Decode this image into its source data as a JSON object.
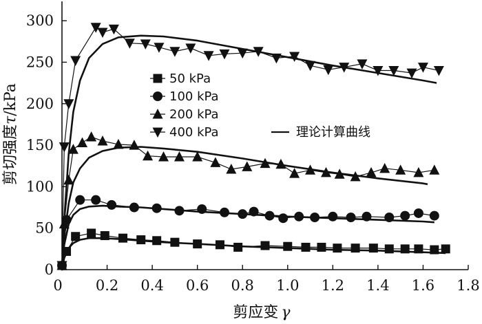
{
  "chart_data": {
    "type": "line",
    "title": "",
    "xlabel_text": "剪应变",
    "xlabel_symbol": "γ",
    "ylabel_prefix": "剪切强度",
    "ylabel_symbol": "τ",
    "ylabel_unit": "/kPa",
    "xlim": [
      0,
      1.8
    ],
    "ylim": [
      0,
      320
    ],
    "x_ticks": [
      0,
      0.2,
      0.4,
      0.6,
      0.8,
      1.0,
      1.2,
      1.4,
      1.6,
      1.8
    ],
    "x_tick_labels": [
      "0",
      "0.2",
      "0.4",
      "0.6",
      "0.8",
      "1.0",
      "1.2",
      "1.4",
      "1.6",
      "1.8"
    ],
    "y_ticks": [
      0,
      50,
      100,
      150,
      200,
      250,
      300
    ],
    "y_tick_labels": [
      "0",
      "50",
      "100",
      "150",
      "200",
      "250",
      "300"
    ],
    "grid": false,
    "legend_position": "middle-left",
    "series": [
      {
        "name": "50 kPa",
        "marker": "square",
        "x": [
          0,
          0.02,
          0.06,
          0.13,
          0.19,
          0.27,
          0.35,
          0.42,
          0.5,
          0.6,
          0.7,
          0.78,
          0.9,
          1.0,
          1.08,
          1.15,
          1.22,
          1.3,
          1.38,
          1.45,
          1.52,
          1.58,
          1.65,
          1.7
        ],
        "y": [
          5,
          22,
          40,
          44,
          41,
          38,
          36,
          35,
          33,
          31,
          30,
          27,
          29,
          28,
          27,
          27,
          26,
          26,
          26,
          25,
          25,
          25,
          24,
          25
        ]
      },
      {
        "name": "100 kPa",
        "marker": "circle",
        "x": [
          0,
          0.02,
          0.08,
          0.15,
          0.22,
          0.32,
          0.42,
          0.52,
          0.62,
          0.72,
          0.8,
          0.85,
          0.92,
          0.98,
          1.05,
          1.12,
          1.2,
          1.28,
          1.35,
          1.45,
          1.52,
          1.58,
          1.65
        ],
        "y": [
          5,
          60,
          84,
          84,
          78,
          75,
          74,
          71,
          73,
          69,
          67,
          70,
          65,
          62,
          64,
          63,
          64,
          63,
          64,
          63,
          65,
          68,
          65
        ]
      },
      {
        "name": "200 kPa",
        "marker": "triangle-up",
        "x": [
          0,
          0.01,
          0.03,
          0.05,
          0.09,
          0.13,
          0.18,
          0.25,
          0.32,
          0.38,
          0.45,
          0.52,
          0.6,
          0.68,
          0.75,
          0.82,
          0.9,
          0.97,
          1.03,
          1.1,
          1.17,
          1.23,
          1.3,
          1.37,
          1.43,
          1.5,
          1.58,
          1.65
        ],
        "y": [
          5,
          55,
          108,
          145,
          153,
          160,
          155,
          151,
          150,
          137,
          136,
          136,
          136,
          129,
          121,
          124,
          128,
          127,
          116,
          120,
          117,
          115,
          112,
          117,
          122,
          120,
          117,
          120
        ]
      },
      {
        "name": "400 kPa",
        "marker": "triangle-down",
        "x": [
          0,
          0.01,
          0.03,
          0.06,
          0.15,
          0.18,
          0.23,
          0.3,
          0.37,
          0.43,
          0.5,
          0.57,
          0.65,
          0.72,
          0.8,
          0.87,
          0.95,
          1.03,
          1.1,
          1.18,
          1.25,
          1.33,
          1.4,
          1.47,
          1.55,
          1.6,
          1.67
        ],
        "y": [
          5,
          148,
          200,
          252,
          292,
          286,
          290,
          273,
          272,
          268,
          263,
          267,
          258,
          260,
          261,
          263,
          255,
          257,
          246,
          241,
          244,
          248,
          240,
          240,
          237,
          244,
          240
        ]
      }
    ],
    "theory_curves": {
      "name": "理论计算曲线",
      "series": [
        {
          "for": "50 kPa",
          "x": [
            0,
            0.01,
            0.03,
            0.05,
            0.08,
            0.12,
            0.18,
            0.25,
            0.35,
            0.45,
            0.6,
            0.8,
            1.0,
            1.2,
            1.4,
            1.6,
            1.7
          ],
          "y": [
            0,
            14,
            26,
            32,
            36,
            38,
            38,
            37,
            35,
            33,
            31,
            28,
            26,
            24,
            23,
            21,
            20
          ]
        },
        {
          "for": "100 kPa",
          "x": [
            0,
            0.01,
            0.03,
            0.05,
            0.08,
            0.12,
            0.18,
            0.25,
            0.35,
            0.45,
            0.6,
            0.8,
            1.0,
            1.2,
            1.4,
            1.6,
            1.65
          ],
          "y": [
            0,
            30,
            55,
            66,
            73,
            76,
            77,
            76,
            75,
            73,
            70,
            67,
            64,
            62,
            60,
            58,
            57
          ]
        },
        {
          "for": "200 kPa",
          "x": [
            0,
            0.01,
            0.03,
            0.05,
            0.08,
            0.12,
            0.18,
            0.25,
            0.35,
            0.45,
            0.6,
            0.8,
            1.0,
            1.2,
            1.4,
            1.6,
            1.62
          ],
          "y": [
            0,
            40,
            80,
            105,
            122,
            135,
            143,
            147,
            148,
            146,
            142,
            134,
            125,
            117,
            110,
            104,
            103
          ]
        },
        {
          "for": "400 kPa",
          "x": [
            0,
            0.01,
            0.03,
            0.05,
            0.08,
            0.12,
            0.18,
            0.25,
            0.35,
            0.45,
            0.6,
            0.8,
            1.0,
            1.2,
            1.4,
            1.6,
            1.66
          ],
          "y": [
            0,
            60,
            140,
            190,
            228,
            255,
            272,
            280,
            282,
            281,
            276,
            266,
            256,
            246,
            237,
            228,
            225
          ]
        }
      ]
    },
    "legend": {
      "entries": [
        "50 kPa",
        "100 kPa",
        "200 kPa",
        "400 kPa"
      ],
      "theory_label": "理论计算曲线"
    }
  }
}
